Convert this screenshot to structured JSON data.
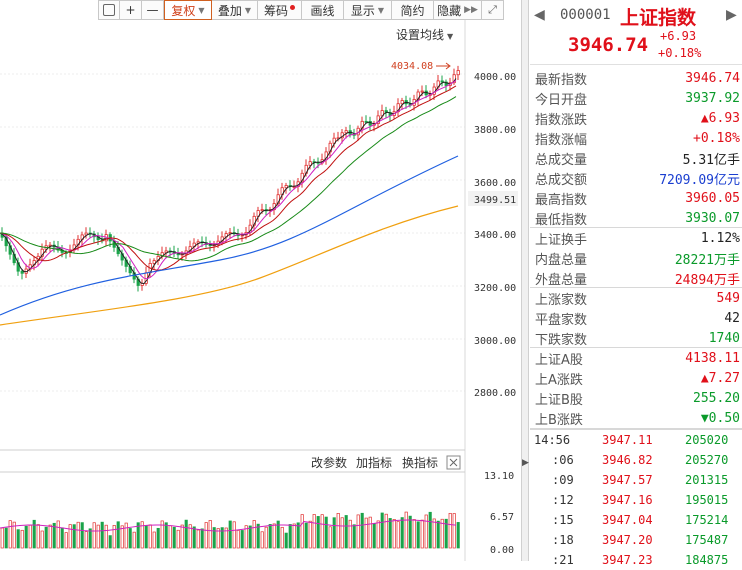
{
  "toolbar": {
    "items": [
      {
        "label": "",
        "icon": "square-icon"
      },
      {
        "label": "+"
      },
      {
        "label": "—"
      },
      {
        "label": "复权"
      },
      {
        "label": "叠加"
      },
      {
        "label": "筹码"
      },
      {
        "label": "画线"
      },
      {
        "label": "显示"
      },
      {
        "label": "简约"
      },
      {
        "label": "隐藏"
      }
    ]
  },
  "chart": {
    "ma_setting": "设置均线",
    "high_marker": "4034.08",
    "price_axis": [
      "4000.00",
      "3800.00",
      "3600.00",
      "3499.51",
      "3400.00",
      "3200.00",
      "3000.00",
      "2800.00"
    ],
    "volume_axis": [
      "13.10",
      "6.57",
      "0.00"
    ],
    "indicator_buttons": [
      "改参数",
      "加指标",
      "换指标"
    ]
  },
  "quote": {
    "code": "000001",
    "name": "上证指数",
    "price": "3946.74",
    "change": "+6.93",
    "change_pct": "+0.18%",
    "rows": [
      {
        "label": "最新指数",
        "value": "3946.74",
        "unit": ""
      },
      {
        "label": "今日开盘",
        "value": "3937.92",
        "unit": ""
      },
      {
        "label": "指数涨跌",
        "value": "▲6.93",
        "unit": ""
      },
      {
        "label": "指数涨幅",
        "value": "+0.18%",
        "unit": ""
      },
      {
        "label": "总成交量",
        "value": "5.31",
        "unit": "亿手"
      },
      {
        "label": "总成交额",
        "value": "7209.09",
        "unit": "亿元"
      },
      {
        "label": "最高指数",
        "value": "3960.05",
        "unit": ""
      },
      {
        "label": "最低指数",
        "value": "3930.07",
        "unit": ""
      },
      {
        "label": "上证换手",
        "value": "1.12%",
        "unit": ""
      },
      {
        "label": "内盘总量",
        "value": "28221",
        "unit": "万手"
      },
      {
        "label": "外盘总量",
        "value": "24894",
        "unit": "万手"
      },
      {
        "label": "上涨家数",
        "value": "549",
        "unit": ""
      },
      {
        "label": "平盘家数",
        "value": "42",
        "unit": ""
      },
      {
        "label": "下跌家数",
        "value": "1740",
        "unit": ""
      },
      {
        "label": "上证A股",
        "value": "4138.11",
        "unit": ""
      },
      {
        "label": "上A涨跌",
        "value": "▲7.27",
        "unit": ""
      },
      {
        "label": "上证B股",
        "value": "255.20",
        "unit": ""
      },
      {
        "label": "上B涨跌",
        "value": "▼0.50",
        "unit": ""
      }
    ]
  },
  "ticks": [
    {
      "time": "14:56",
      "price": "3947.11",
      "vol": "205020"
    },
    {
      "time": ":06",
      "price": "3946.82",
      "vol": "205270"
    },
    {
      "time": ":09",
      "price": "3947.57",
      "vol": "201315"
    },
    {
      "time": ":12",
      "price": "3947.16",
      "vol": "195015"
    },
    {
      "time": ":15",
      "price": "3947.04",
      "vol": "175214"
    },
    {
      "time": ":18",
      "price": "3947.20",
      "vol": "175487"
    },
    {
      "time": ":21",
      "price": "3947.23",
      "vol": "184875"
    }
  ]
}
